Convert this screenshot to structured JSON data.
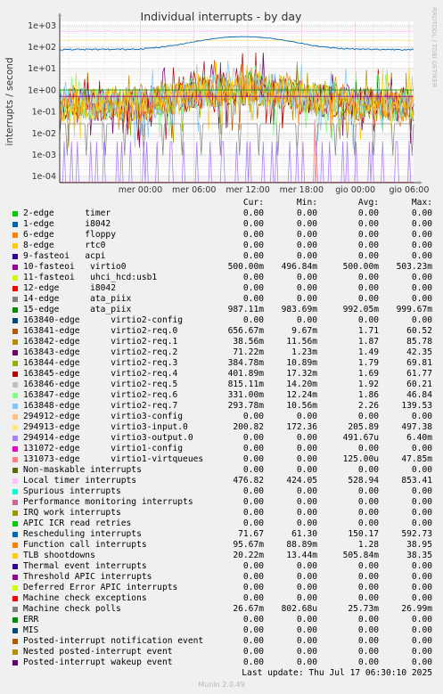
{
  "chart_data": {
    "type": "line",
    "title": "Individual interrupts - by day",
    "ylabel": "interrupts / second",
    "watermark": "RRDTOOL / TOBI OETIKER",
    "y_scale": "log",
    "ylim": [
      5e-05,
      1500
    ],
    "y_ticks": [
      "1e+03",
      "1e+02",
      "1e+01",
      "1e+00",
      "1e-01",
      "1e-02",
      "1e-03",
      "1e-04"
    ],
    "x_range_hours": [
      -9.0,
      30.5
    ],
    "x_ticks": [
      {
        "label": "mer 00:00",
        "h": 0
      },
      {
        "label": "mer 06:00",
        "h": 6
      },
      {
        "label": "mer 12:00",
        "h": 12
      },
      {
        "label": "mer 18:00",
        "h": 18
      },
      {
        "label": "gio 00:00",
        "h": 24
      },
      {
        "label": "gio 06:00",
        "h": 30
      }
    ],
    "grid": true,
    "columns": [
      "Cur:",
      "Min:",
      "Avg:",
      "Max:"
    ],
    "series": [
      {
        "name": "2-edge      timer",
        "color": "#00cc00",
        "cur": "0.00",
        "min": "0.00",
        "avg": "0.00",
        "max": "0.00"
      },
      {
        "name": "1-edge      i8042",
        "color": "#0066b3",
        "cur": "0.00",
        "min": "0.00",
        "avg": "0.00",
        "max": "0.00"
      },
      {
        "name": "6-edge      floppy",
        "color": "#ff8000",
        "cur": "0.00",
        "min": "0.00",
        "avg": "0.00",
        "max": "0.00"
      },
      {
        "name": "8-edge      rtc0",
        "color": "#ffcc00",
        "cur": "0.00",
        "min": "0.00",
        "avg": "0.00",
        "max": "0.00"
      },
      {
        "name": "9-fasteoi   acpi",
        "color": "#330099",
        "cur": "0.00",
        "min": "0.00",
        "avg": "0.00",
        "max": "0.00"
      },
      {
        "name": "10-fasteoi   virtio0",
        "color": "#990099",
        "cur": "500.00m",
        "min": "496.84m",
        "avg": "500.00m",
        "max": "503.23m"
      },
      {
        "name": "11-fasteoi   uhci_hcd:usb1",
        "color": "#ccff00",
        "cur": "0.00",
        "min": "0.00",
        "avg": "0.00",
        "max": "0.00"
      },
      {
        "name": "12-edge      i8042",
        "color": "#ff0000",
        "cur": "0.00",
        "min": "0.00",
        "avg": "0.00",
        "max": "0.00"
      },
      {
        "name": "14-edge      ata_piix",
        "color": "#808080",
        "cur": "0.00",
        "min": "0.00",
        "avg": "0.00",
        "max": "0.00"
      },
      {
        "name": "15-edge      ata_piix",
        "color": "#008f00",
        "cur": "987.11m",
        "min": "983.69m",
        "avg": "992.05m",
        "max": "999.67m"
      },
      {
        "name": "163840-edge      virtio2-config",
        "color": "#00487d",
        "cur": "0.00",
        "min": "0.00",
        "avg": "0.00",
        "max": "0.00"
      },
      {
        "name": "163841-edge      virtio2-req.0",
        "color": "#b35a00",
        "cur": "656.67m",
        "min": "9.67m",
        "avg": "1.71",
        "max": "60.52"
      },
      {
        "name": "163842-edge      virtio2-req.1",
        "color": "#b38f00",
        "cur": "38.56m",
        "min": "11.56m",
        "avg": "1.87",
        "max": "85.78"
      },
      {
        "name": "163843-edge      virtio2-req.2",
        "color": "#6b006b",
        "cur": "71.22m",
        "min": "1.23m",
        "avg": "1.49",
        "max": "42.35"
      },
      {
        "name": "163844-edge      virtio2-req.3",
        "color": "#8fb300",
        "cur": "384.78m",
        "min": "10.89m",
        "avg": "1.79",
        "max": "69.81"
      },
      {
        "name": "163845-edge      virtio2-req.4",
        "color": "#b30000",
        "cur": "401.89m",
        "min": "17.32m",
        "avg": "1.69",
        "max": "61.77"
      },
      {
        "name": "163846-edge      virtio2-req.5",
        "color": "#bebebe",
        "cur": "815.11m",
        "min": "14.20m",
        "avg": "1.92",
        "max": "60.21"
      },
      {
        "name": "163847-edge      virtio2-req.6",
        "color": "#80ff80",
        "cur": "331.00m",
        "min": "12.24m",
        "avg": "1.86",
        "max": "46.84"
      },
      {
        "name": "163848-edge      virtio2-req.7",
        "color": "#80c9ff",
        "cur": "293.78m",
        "min": "10.56m",
        "avg": "2.26",
        "max": "139.53"
      },
      {
        "name": "294912-edge      virtio3-config",
        "color": "#ffc080",
        "cur": "0.00",
        "min": "0.00",
        "avg": "0.00",
        "max": "0.00"
      },
      {
        "name": "294913-edge      virtio3-input.0",
        "color": "#ffe680",
        "cur": "200.82",
        "min": "172.36",
        "avg": "205.89",
        "max": "497.38"
      },
      {
        "name": "294914-edge      virtio3-output.0",
        "color": "#aa80ff",
        "cur": "0.00",
        "min": "0.00",
        "avg": "491.67u",
        "max": "6.40m"
      },
      {
        "name": "131072-edge      virtio1-config",
        "color": "#ee00cc",
        "cur": "0.00",
        "min": "0.00",
        "avg": "0.00",
        "max": "0.00"
      },
      {
        "name": "131073-edge      virtio1-virtqueues",
        "color": "#ff8080",
        "cur": "0.00",
        "min": "0.00",
        "avg": "125.00u",
        "max": "47.85m"
      },
      {
        "name": "Non-maskable interrupts",
        "color": "#666600",
        "cur": "0.00",
        "min": "0.00",
        "avg": "0.00",
        "max": "0.00"
      },
      {
        "name": "Local timer interrupts",
        "color": "#ffbfff",
        "cur": "476.82",
        "min": "424.05",
        "avg": "528.94",
        "max": "853.41"
      },
      {
        "name": "Spurious interrupts",
        "color": "#00ffcc",
        "cur": "0.00",
        "min": "0.00",
        "avg": "0.00",
        "max": "0.00"
      },
      {
        "name": "Performance monitoring interrupts",
        "color": "#cc6699",
        "cur": "0.00",
        "min": "0.00",
        "avg": "0.00",
        "max": "0.00"
      },
      {
        "name": "IRQ work interrupts",
        "color": "#999900",
        "cur": "0.00",
        "min": "0.00",
        "avg": "0.00",
        "max": "0.00"
      },
      {
        "name": "APIC ICR read retries",
        "color": "#00cc00",
        "cur": "0.00",
        "min": "0.00",
        "avg": "0.00",
        "max": "0.00"
      },
      {
        "name": "Rescheduling interrupts",
        "color": "#0066b3",
        "cur": "71.67",
        "min": "61.30",
        "avg": "150.17",
        "max": "592.73"
      },
      {
        "name": "Function call interrupts",
        "color": "#ff8000",
        "cur": "95.67m",
        "min": "88.89m",
        "avg": "1.28",
        "max": "38.95"
      },
      {
        "name": "TLB shootdowns",
        "color": "#ffcc00",
        "cur": "20.22m",
        "min": "13.44m",
        "avg": "505.84m",
        "max": "38.35"
      },
      {
        "name": "Thermal event interrupts",
        "color": "#330099",
        "cur": "0.00",
        "min": "0.00",
        "avg": "0.00",
        "max": "0.00"
      },
      {
        "name": "Threshold APIC interrupts",
        "color": "#990099",
        "cur": "0.00",
        "min": "0.00",
        "avg": "0.00",
        "max": "0.00"
      },
      {
        "name": "Deferred Error APIC interrupts",
        "color": "#ccff00",
        "cur": "0.00",
        "min": "0.00",
        "avg": "0.00",
        "max": "0.00"
      },
      {
        "name": "Machine check exceptions",
        "color": "#ff0000",
        "cur": "0.00",
        "min": "0.00",
        "avg": "0.00",
        "max": "0.00"
      },
      {
        "name": "Machine check polls",
        "color": "#808080",
        "cur": "26.67m",
        "min": "802.68u",
        "avg": "25.73m",
        "max": "26.99m"
      },
      {
        "name": "ERR",
        "color": "#008f00",
        "cur": "0.00",
        "min": "0.00",
        "avg": "0.00",
        "max": "0.00"
      },
      {
        "name": "MIS",
        "color": "#00487d",
        "cur": "0.00",
        "min": "0.00",
        "avg": "0.00",
        "max": "0.00"
      },
      {
        "name": "Posted-interrupt notification event",
        "color": "#b35a00",
        "cur": "0.00",
        "min": "0.00",
        "avg": "0.00",
        "max": "0.00"
      },
      {
        "name": "Nested posted-interrupt event",
        "color": "#b38f00",
        "cur": "0.00",
        "min": "0.00",
        "avg": "0.00",
        "max": "0.00"
      },
      {
        "name": "Posted-interrupt wakeup event",
        "color": "#6b006b",
        "cur": "0.00",
        "min": "0.00",
        "avg": "0.00",
        "max": "0.00"
      }
    ]
  },
  "footer": {
    "last_update": "Last update:  Thu Jul 17 06:30:10 2025",
    "generator": "Munin 2.0.49"
  }
}
